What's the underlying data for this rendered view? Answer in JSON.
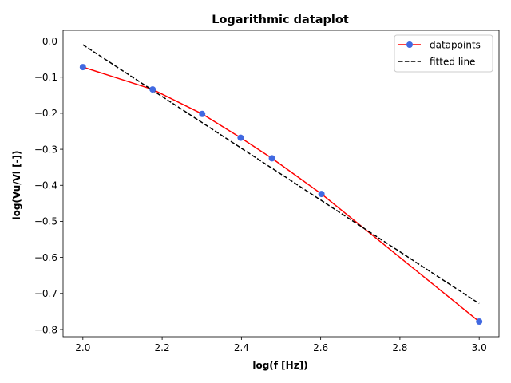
{
  "chart_data": {
    "type": "line",
    "title": "Logarithmic dataplot",
    "xlabel": "log(f [Hz])",
    "ylabel": "log(Vu/Vi [-])",
    "xlim": [
      1.95,
      3.05
    ],
    "ylim": [
      -0.82,
      0.03
    ],
    "xticks": [
      2.0,
      2.2,
      2.4,
      2.6,
      2.8,
      3.0
    ],
    "xtick_labels": [
      "2.0",
      "2.2",
      "2.4",
      "2.6",
      "2.8",
      "3.0"
    ],
    "yticks": [
      0.0,
      -0.1,
      -0.2,
      -0.3,
      -0.4,
      -0.5,
      -0.6,
      -0.7,
      -0.8
    ],
    "ytick_labels": [
      "0.0",
      "−0.1",
      "−0.2",
      "−0.3",
      "−0.4",
      "−0.5",
      "−0.6",
      "−0.7",
      "−0.8"
    ],
    "grid": false,
    "legend": "top-right",
    "series": [
      {
        "name": "datapoints",
        "x": [
          2.0,
          2.176,
          2.301,
          2.398,
          2.477,
          2.602,
          3.0
        ],
        "y": [
          -0.072,
          -0.134,
          -0.202,
          -0.268,
          -0.325,
          -0.424,
          -0.778
        ],
        "line_color": "#ff0000",
        "marker_color": "#4169e1",
        "style": "solid-with-markers"
      },
      {
        "name": "fitted line",
        "x": [
          2.0,
          3.0
        ],
        "y": [
          -0.01,
          -0.728
        ],
        "line_color": "#000000",
        "style": "dashed"
      }
    ]
  }
}
